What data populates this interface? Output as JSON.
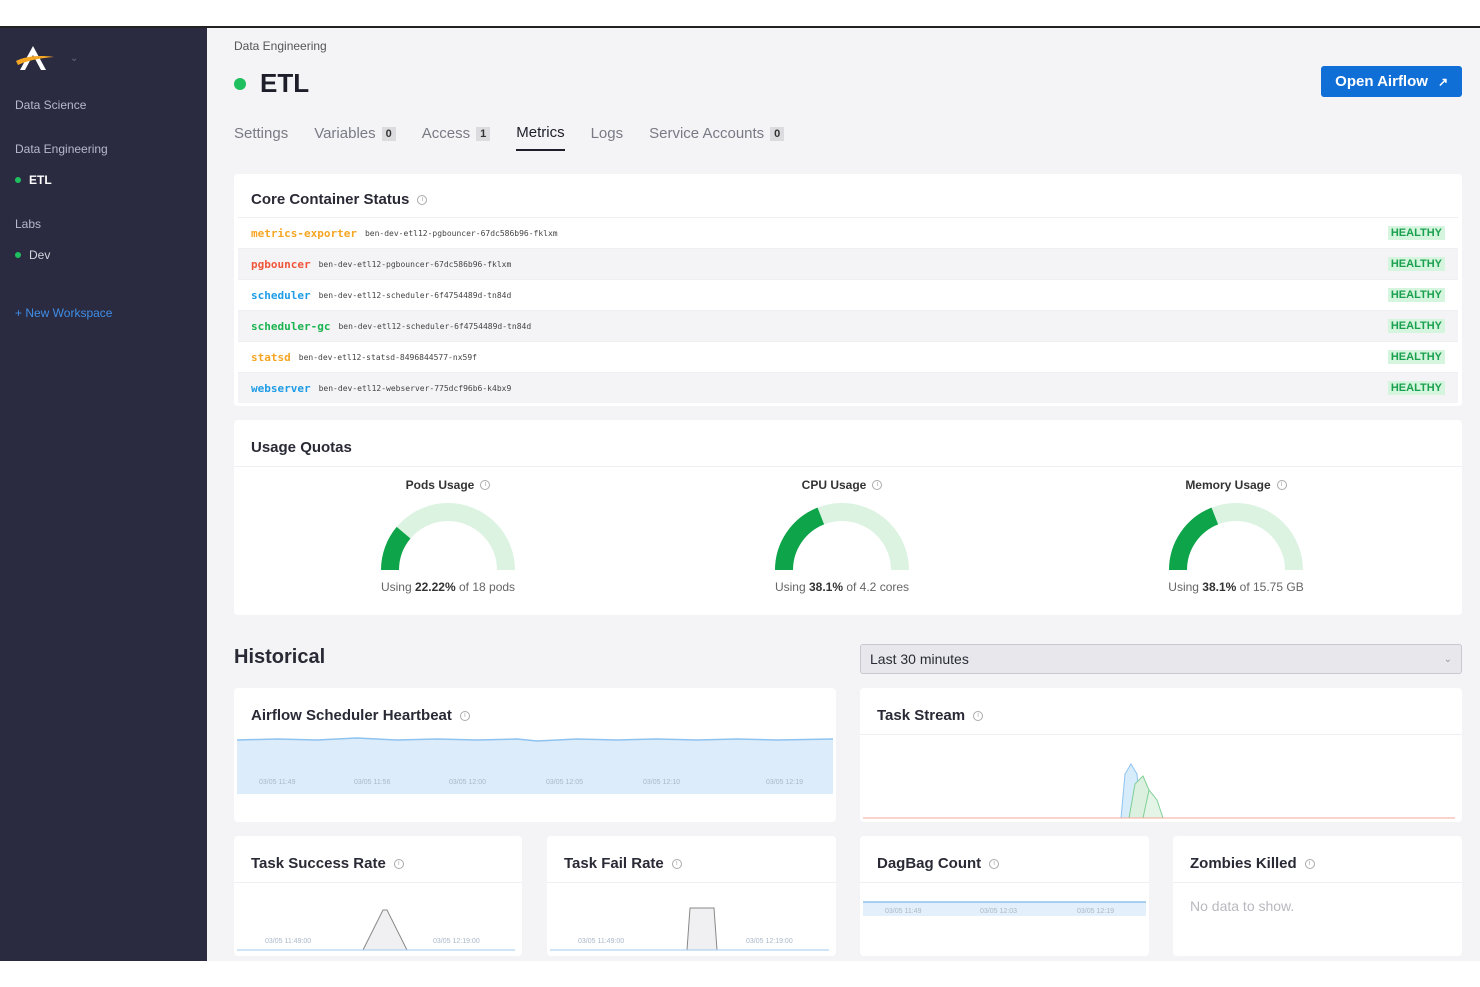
{
  "sidebar": {
    "groups": [
      {
        "label": "Data Science",
        "items": []
      },
      {
        "label": "Data Engineering",
        "items": [
          {
            "label": "ETL",
            "active": true
          }
        ]
      },
      {
        "label": "Labs",
        "items": [
          {
            "label": "Dev",
            "active": false
          }
        ]
      }
    ],
    "new_workspace": "+ New Workspace"
  },
  "header": {
    "breadcrumb": "Data Engineering",
    "title": "ETL",
    "open_airflow": "Open Airflow",
    "open_airflow_icon": "↗"
  },
  "tabs": [
    {
      "label": "Settings",
      "badge": null
    },
    {
      "label": "Variables",
      "badge": "0"
    },
    {
      "label": "Access",
      "badge": "1"
    },
    {
      "label": "Metrics",
      "badge": null,
      "active": true
    },
    {
      "label": "Logs",
      "badge": null
    },
    {
      "label": "Service Accounts",
      "badge": "0"
    }
  ],
  "core_status": {
    "title": "Core Container Status",
    "rows": [
      {
        "name": "metrics-exporter",
        "pod": "ben-dev-etl12-pgbouncer-67dc586b96-fklxm",
        "status": "HEALTHY",
        "color": "#f5a623"
      },
      {
        "name": "pgbouncer",
        "pod": "ben-dev-etl12-pgbouncer-67dc586b96-fklxm",
        "status": "HEALTHY",
        "color": "#f0563b"
      },
      {
        "name": "scheduler",
        "pod": "ben-dev-etl12-scheduler-6f4754489d-tn84d",
        "status": "HEALTHY",
        "color": "#1e9ce6"
      },
      {
        "name": "scheduler-gc",
        "pod": "ben-dev-etl12-scheduler-6f4754489d-tn84d",
        "status": "HEALTHY",
        "color": "#1bb34f"
      },
      {
        "name": "statsd",
        "pod": "ben-dev-etl12-statsd-8496844577-nx59f",
        "status": "HEALTHY",
        "color": "#f5a623"
      },
      {
        "name": "webserver",
        "pod": "ben-dev-etl12-webserver-775dcf96b6-k4bx9",
        "status": "HEALTHY",
        "color": "#1e9ce6"
      }
    ]
  },
  "usage": {
    "title": "Usage Quotas",
    "gauges": [
      {
        "title": "Pods Usage",
        "pre": "Using ",
        "value": "22.22%",
        "post": " of 18 pods",
        "fraction": 0.2222
      },
      {
        "title": "CPU Usage",
        "pre": "Using ",
        "value": "38.1%",
        "post": " of 4.2 cores",
        "fraction": 0.381
      },
      {
        "title": "Memory Usage",
        "pre": "Using ",
        "value": "38.1%",
        "post": " of 15.75 GB",
        "fraction": 0.381
      }
    ]
  },
  "historical": {
    "title": "Historical",
    "range": "Last 30 minutes"
  },
  "charts": {
    "heartbeat": {
      "title": "Airflow Scheduler Heartbeat",
      "ticks": [
        "03/05 11:49",
        "03/05 11:56",
        "03/05 12:00",
        "03/05 12:05",
        "03/05 12:10",
        "03/05 12:19"
      ]
    },
    "task_stream": {
      "title": "Task Stream"
    },
    "success": {
      "title": "Task Success Rate",
      "ticks": [
        "03/05 11:49:00",
        "03/05 12:19:00"
      ]
    },
    "fail": {
      "title": "Task Fail Rate",
      "ticks": [
        "03/05 11:49:00",
        "03/05 12:19:00"
      ]
    },
    "dagbag": {
      "title": "DagBag Count",
      "ticks": [
        "03/05 11:49",
        "03/05 12:03",
        "03/05 12:19"
      ]
    },
    "zombies": {
      "title": "Zombies Killed",
      "empty": "No data to show."
    }
  },
  "colors": {
    "accent": "#0f6fd6",
    "healthy": "#1fbf5f",
    "sidebar": "#2a2a40"
  }
}
